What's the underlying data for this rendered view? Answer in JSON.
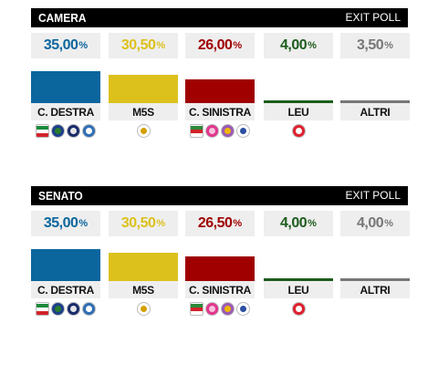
{
  "chart_data": [
    {
      "type": "bar",
      "title": "CAMERA",
      "subtitle": "EXIT POLL",
      "categories": [
        "C. DESTRA",
        "M5S",
        "C. SINISTRA",
        "LEU",
        "ALTRI"
      ],
      "values": [
        35.0,
        30.5,
        26.0,
        4.0,
        3.5
      ],
      "value_labels": [
        "35,00",
        "30,50",
        "26,00",
        "4,00",
        "3,50"
      ],
      "unit": "%",
      "colors": [
        "#0b669e",
        "#dcc11d",
        "#a00000",
        "#1c5c1c",
        "#777777"
      ],
      "xlabel": "",
      "ylabel": ""
    },
    {
      "type": "bar",
      "title": "SENATO",
      "subtitle": "EXIT POLL",
      "categories": [
        "C. DESTRA",
        "M5S",
        "C. SINISTRA",
        "LEU",
        "ALTRI"
      ],
      "values": [
        35.0,
        30.5,
        26.5,
        4.0,
        4.0
      ],
      "value_labels": [
        "35,00",
        "30,50",
        "26,50",
        "4,00",
        "4,00"
      ],
      "unit": "%",
      "colors": [
        "#0b669e",
        "#dcc11d",
        "#a00000",
        "#1c5c1c",
        "#777777"
      ],
      "xlabel": "",
      "ylabel": ""
    }
  ],
  "logos": {
    "C. DESTRA": [
      {
        "name": "forza-italia-logo",
        "colors": [
          "#1b8a3c",
          "#ffffff",
          "#d2232a"
        ],
        "shape": "square"
      },
      {
        "name": "lega-logo",
        "colors": [
          "#1c3f8c",
          "#2a7d2e"
        ]
      },
      {
        "name": "fratelli-italia-logo",
        "colors": [
          "#1a2b6d",
          "#e5e5e5"
        ]
      },
      {
        "name": "noi-con-italia-logo",
        "colors": [
          "#2f6fb5",
          "#ffffff"
        ]
      }
    ],
    "M5S": [
      {
        "name": "m5s-logo",
        "colors": [
          "#ffffff",
          "#d4a000"
        ]
      }
    ],
    "C. SINISTRA": [
      {
        "name": "pd-logo",
        "colors": [
          "#2c8a3a",
          "#d2232a"
        ],
        "shape": "square"
      },
      {
        "name": "civica-popolare-logo",
        "colors": [
          "#e2358d",
          "#f7c1dd"
        ]
      },
      {
        "name": "insieme-logo",
        "colors": [
          "#9b59b6",
          "#f2b705"
        ]
      },
      {
        "name": "piu-europa-logo",
        "colors": [
          "#ffffff",
          "#2b4fa1"
        ]
      }
    ],
    "LEU": [
      {
        "name": "leu-logo",
        "colors": [
          "#e0202e",
          "#ffffff"
        ]
      }
    ],
    "ALTRI": []
  }
}
